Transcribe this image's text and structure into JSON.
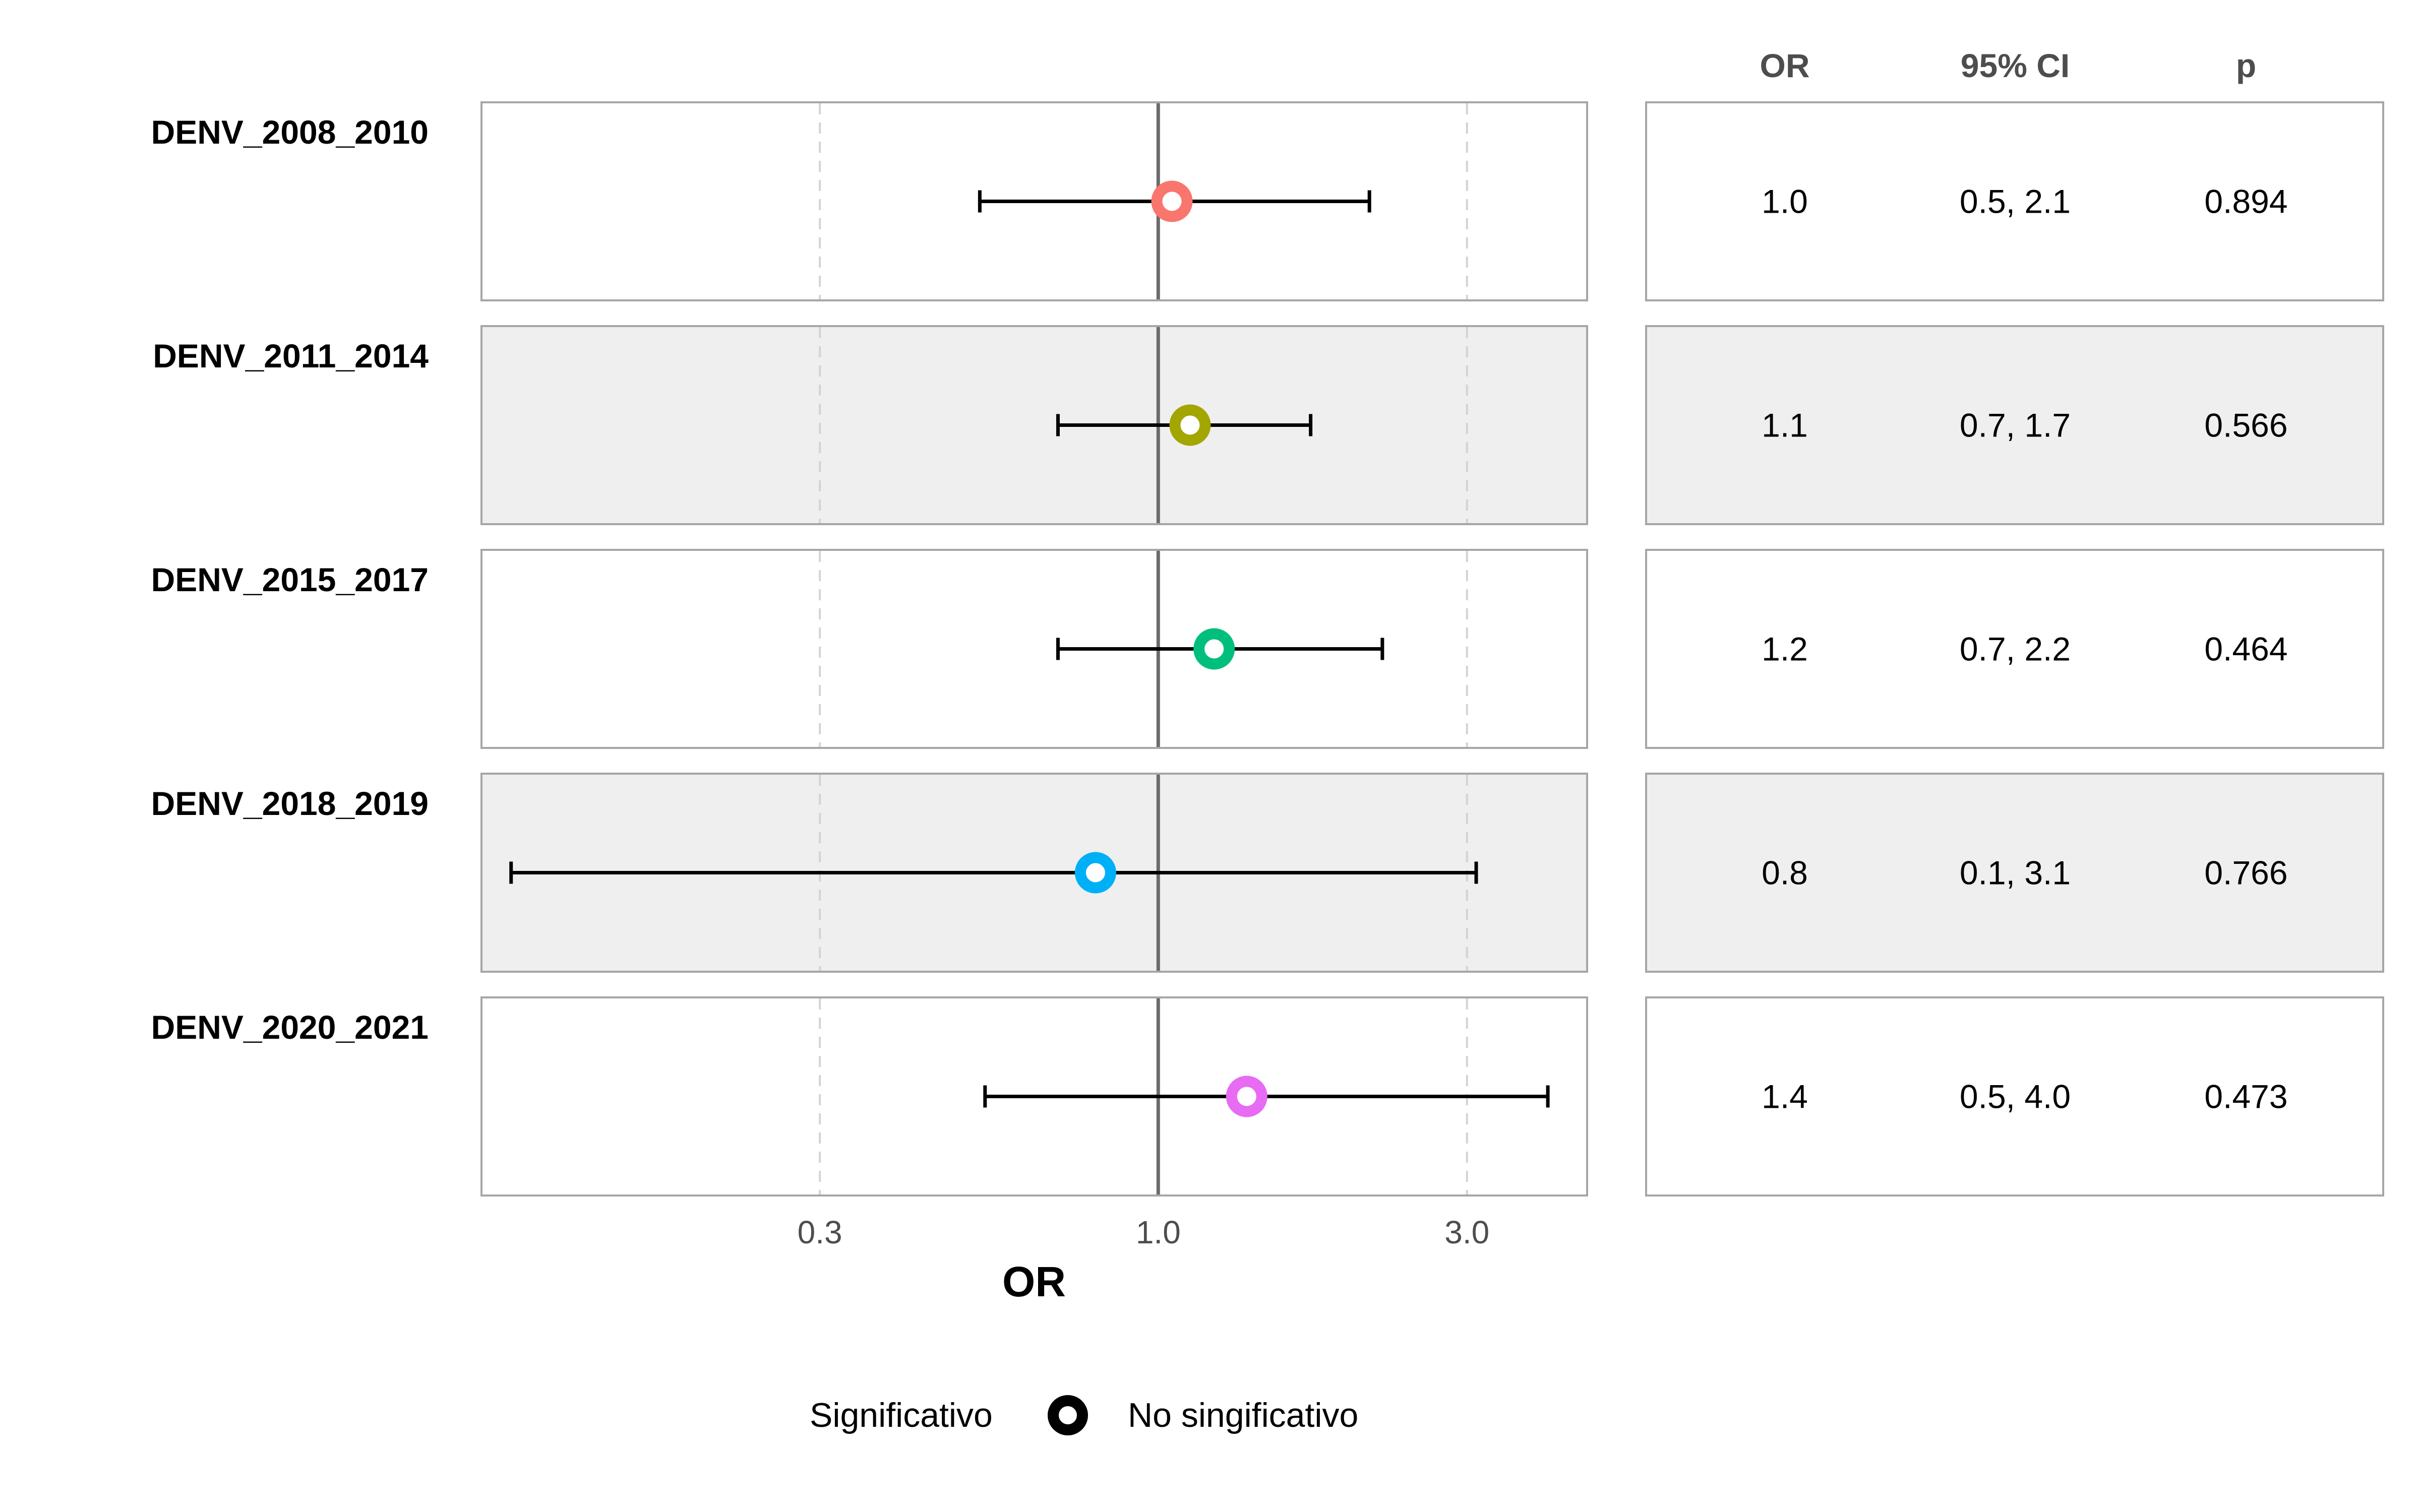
{
  "chart_data": {
    "type": "forest",
    "xlabel": "OR",
    "x_scale": "log",
    "xlim": [
      0.09,
      4.6
    ],
    "x_ticks": [
      {
        "value": 0.3,
        "label": "0.3"
      },
      {
        "value": 1.0,
        "label": "1.0"
      },
      {
        "value": 3.0,
        "label": "3.0"
      }
    ],
    "reference_line": 1.0,
    "table_headers": {
      "or": "OR",
      "ci": "95% CI",
      "p": "p"
    },
    "rows": [
      {
        "name": "DENV_2008_2010",
        "or": 1.05,
        "ci_low": 0.53,
        "ci_high": 2.12,
        "or_text": "1.0",
        "ci_text": "0.5, 2.1",
        "p_text": "0.894",
        "color": "#F8766D",
        "shaded": false
      },
      {
        "name": "DENV_2011_2014",
        "or": 1.12,
        "ci_low": 0.7,
        "ci_high": 1.72,
        "or_text": "1.1",
        "ci_text": "0.7, 1.7",
        "p_text": "0.566",
        "color": "#A3A500",
        "shaded": true
      },
      {
        "name": "DENV_2015_2017",
        "or": 1.22,
        "ci_low": 0.7,
        "ci_high": 2.22,
        "or_text": "1.2",
        "ci_text": "0.7, 2.2",
        "p_text": "0.464",
        "color": "#00BF7D",
        "shaded": false
      },
      {
        "name": "DENV_2018_2019",
        "or": 0.8,
        "ci_low": 0.1,
        "ci_high": 3.1,
        "or_text": "0.8",
        "ci_text": "0.1, 3.1",
        "p_text": "0.766",
        "color": "#00B0F6",
        "shaded": true
      },
      {
        "name": "DENV_2020_2021",
        "or": 1.37,
        "ci_low": 0.54,
        "ci_high": 4.0,
        "or_text": "1.4",
        "ci_text": "0.5, 4.0",
        "p_text": "0.473",
        "color": "#E76BF3",
        "shaded": false
      }
    ],
    "legend": {
      "title": "Significativo",
      "entries": [
        {
          "label": "No singificativo"
        }
      ],
      "placement": "bottom"
    }
  }
}
